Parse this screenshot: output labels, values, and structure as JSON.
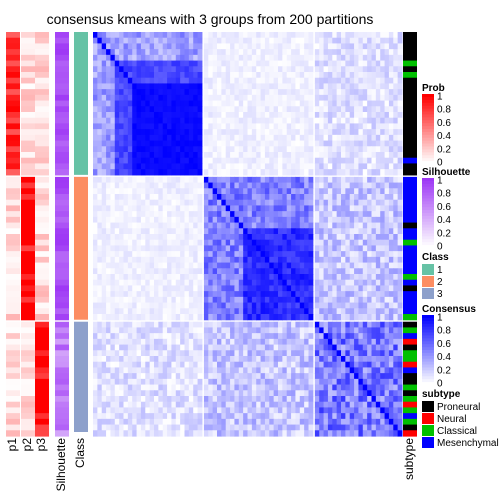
{
  "chart_data": {
    "type": "heatmap",
    "title": "consensus kmeans with 3 groups from 200 partitions",
    "groups": [
      {
        "class": 1,
        "class_color": "#66C2A5"
      },
      {
        "class": 2,
        "class_color": "#FC8D62"
      },
      {
        "class": 3,
        "class_color": "#8DA0CB"
      }
    ],
    "column_labels": {
      "p1": "p1",
      "p2": "p2",
      "p3": "p3",
      "silhouette": "Silhouette",
      "class": "Class",
      "subtype": "subtype"
    },
    "legends": {
      "prob": {
        "title": "Prob",
        "ticks": [
          "1",
          "0.8",
          "0.6",
          "0.4",
          "0.2",
          "0"
        ],
        "low_color": "#FFFFFF",
        "high_color": "#FF0000"
      },
      "silhouette": {
        "title": "Silhouette",
        "ticks": [
          "1",
          "0.8",
          "0.6",
          "0.4",
          "0.2",
          "0"
        ],
        "low_color": "#FFFFFF",
        "high_color": "#9E37F5"
      },
      "class": {
        "title": "Class",
        "items": [
          {
            "label": "1",
            "color": "#66C2A5"
          },
          {
            "label": "2",
            "color": "#FC8D62"
          },
          {
            "label": "3",
            "color": "#8DA0CB"
          }
        ]
      },
      "consensus": {
        "title": "Consensus",
        "ticks": [
          "1",
          "0.8",
          "0.6",
          "0.4",
          "0.2",
          "0"
        ],
        "low_color": "#FFFFFF",
        "high_color": "#0000FF"
      },
      "subtype": {
        "title": "subtype",
        "items": [
          {
            "label": "Proneural",
            "color": "#000000"
          },
          {
            "label": "Neural",
            "color": "#FF0000"
          },
          {
            "label": "Classical",
            "color": "#00C000"
          },
          {
            "label": "Mesenchymal",
            "color": "#0000FF"
          }
        ]
      }
    }
  }
}
